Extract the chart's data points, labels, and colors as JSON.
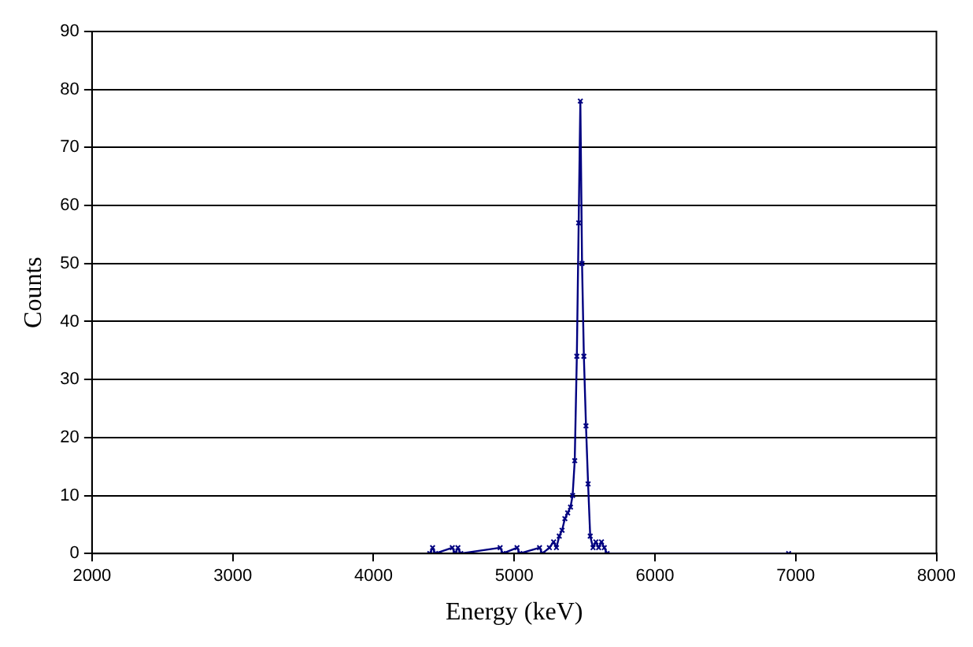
{
  "chart_data": {
    "type": "line",
    "xlabel": "Energy (keV)",
    "ylabel": "Counts",
    "xlim": [
      2000,
      8000
    ],
    "xticks": [
      2000,
      3000,
      4000,
      5000,
      6000,
      7000,
      8000
    ],
    "ylim": [
      0,
      90
    ],
    "yticks": [
      0,
      10,
      20,
      30,
      40,
      50,
      60,
      70,
      80,
      90
    ],
    "grid": "y",
    "marker": "cross",
    "line_style": "solid",
    "legend": false,
    "series": [
      {
        "color": "#000080",
        "x": [
          4400,
          4420,
          4440,
          4560,
          4580,
          4600,
          4620,
          4900,
          4920,
          5020,
          5040,
          5180,
          5200,
          5250,
          5280,
          5300,
          5320,
          5340,
          5360,
          5380,
          5400,
          5415,
          5430,
          5445,
          5458,
          5470,
          5482,
          5495,
          5510,
          5525,
          5540,
          5560,
          5580,
          5600,
          5620,
          5640,
          5660,
          6950
        ],
        "values": [
          0,
          1,
          0,
          1,
          0,
          1,
          0,
          1,
          0,
          1,
          0,
          1,
          0,
          1,
          2,
          1,
          3,
          4,
          6,
          7,
          8,
          10,
          16,
          34,
          57,
          78,
          50,
          34,
          22,
          12,
          3,
          1,
          2,
          1,
          2,
          1,
          0,
          0
        ]
      }
    ]
  }
}
